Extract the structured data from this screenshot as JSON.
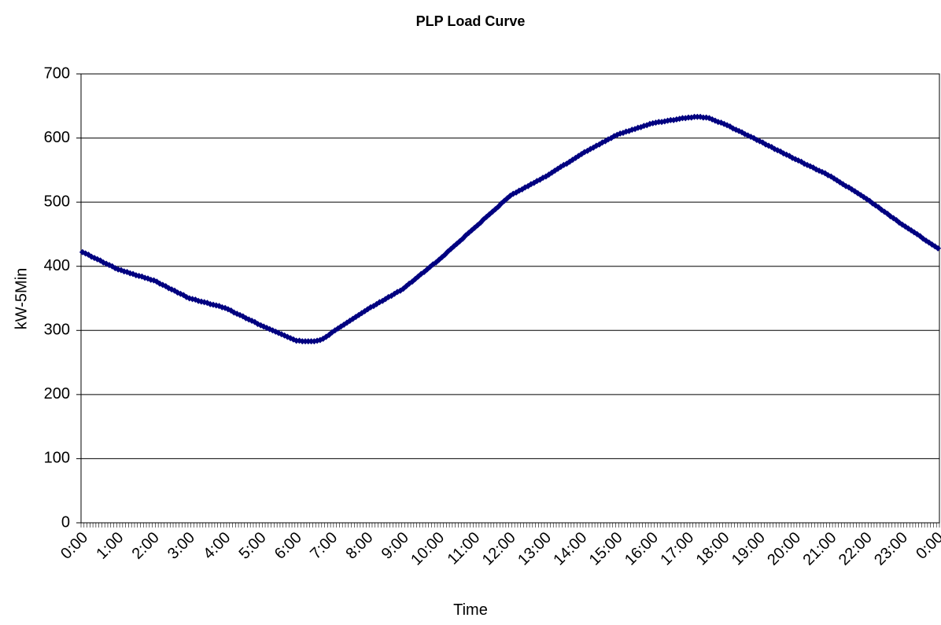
{
  "chart_data": {
    "type": "line",
    "title": "PLP Load Curve",
    "x_label": "Time",
    "y_label": "kW-5Min",
    "categories": [
      "0:00",
      null,
      null,
      null,
      null,
      null,
      null,
      null,
      null,
      null,
      null,
      null,
      "1:00",
      null,
      null,
      null,
      null,
      null,
      null,
      null,
      null,
      null,
      null,
      null,
      "2:00",
      null,
      null,
      null,
      null,
      null,
      null,
      null,
      null,
      null,
      null,
      null,
      "3:00",
      null,
      null,
      null,
      null,
      null,
      null,
      null,
      null,
      null,
      null,
      null,
      "4:00",
      null,
      null,
      null,
      null,
      null,
      null,
      null,
      null,
      null,
      null,
      null,
      "5:00",
      null,
      null,
      null,
      null,
      null,
      null,
      null,
      null,
      null,
      null,
      null,
      "6:00",
      null,
      null,
      null,
      null,
      null,
      null,
      null,
      null,
      null,
      null,
      null,
      "7:00",
      null,
      null,
      null,
      null,
      null,
      null,
      null,
      null,
      null,
      null,
      null,
      "8:00",
      null,
      null,
      null,
      null,
      null,
      null,
      null,
      null,
      null,
      null,
      null,
      "9:00",
      null,
      null,
      null,
      null,
      null,
      null,
      null,
      null,
      null,
      null,
      null,
      "10:00",
      null,
      null,
      null,
      null,
      null,
      null,
      null,
      null,
      null,
      null,
      null,
      "11:00",
      null,
      null,
      null,
      null,
      null,
      null,
      null,
      null,
      null,
      null,
      null,
      "12:00",
      null,
      null,
      null,
      null,
      null,
      null,
      null,
      null,
      null,
      null,
      null,
      "13:00",
      null,
      null,
      null,
      null,
      null,
      null,
      null,
      null,
      null,
      null,
      null,
      "14:00",
      null,
      null,
      null,
      null,
      null,
      null,
      null,
      null,
      null,
      null,
      null,
      "15:00",
      null,
      null,
      null,
      null,
      null,
      null,
      null,
      null,
      null,
      null,
      null,
      "16:00",
      null,
      null,
      null,
      null,
      null,
      null,
      null,
      null,
      null,
      null,
      null,
      "17:00",
      null,
      null,
      null,
      null,
      null,
      null,
      null,
      null,
      null,
      null,
      null,
      "18:00",
      null,
      null,
      null,
      null,
      null,
      null,
      null,
      null,
      null,
      null,
      null,
      "19:00",
      null,
      null,
      null,
      null,
      null,
      null,
      null,
      null,
      null,
      null,
      null,
      "20:00",
      null,
      null,
      null,
      null,
      null,
      null,
      null,
      null,
      null,
      null,
      null,
      "21:00",
      null,
      null,
      null,
      null,
      null,
      null,
      null,
      null,
      null,
      null,
      null,
      "22:00",
      null,
      null,
      null,
      null,
      null,
      null,
      null,
      null,
      null,
      null,
      null,
      "23:00",
      null,
      null,
      null,
      null,
      null,
      null,
      null,
      null,
      null,
      null,
      null,
      "0:00"
    ],
    "series": [
      {
        "color": "#000080",
        "values": [
          422,
          420,
          418,
          415,
          413,
          411,
          409,
          406,
          404,
          402,
          400,
          397,
          395,
          394,
          392,
          391,
          389,
          388,
          386,
          385,
          384,
          382,
          381,
          379,
          378,
          376,
          373,
          371,
          369,
          366,
          364,
          362,
          359,
          357,
          355,
          352,
          350,
          349,
          348,
          346,
          345,
          344,
          343,
          341,
          340,
          339,
          338,
          336,
          335,
          333,
          331,
          328,
          326,
          324,
          322,
          319,
          317,
          315,
          313,
          310,
          308,
          306,
          304,
          302,
          300,
          298,
          296,
          294,
          292,
          290,
          288,
          286,
          284,
          284,
          283,
          283,
          283,
          283,
          283,
          284,
          285,
          287,
          290,
          293,
          297,
          300,
          303,
          306,
          309,
          312,
          315,
          318,
          321,
          324,
          327,
          330,
          333,
          336,
          338,
          341,
          344,
          346,
          349,
          352,
          354,
          357,
          360,
          362,
          365,
          369,
          373,
          376,
          380,
          384,
          388,
          391,
          395,
          399,
          403,
          406,
          410,
          414,
          418,
          423,
          427,
          431,
          435,
          439,
          443,
          448,
          452,
          456,
          460,
          464,
          468,
          473,
          477,
          481,
          485,
          489,
          493,
          498,
          502,
          506,
          510,
          513,
          515,
          518,
          520,
          523,
          525,
          528,
          530,
          533,
          535,
          538,
          540,
          543,
          546,
          549,
          552,
          555,
          558,
          560,
          563,
          566,
          569,
          572,
          575,
          578,
          580,
          583,
          585,
          588,
          590,
          593,
          595,
          598,
          600,
          603,
          605,
          607,
          608,
          610,
          611,
          613,
          614,
          616,
          617,
          619,
          620,
          622,
          623,
          624,
          625,
          625,
          626,
          627,
          628,
          628,
          629,
          630,
          631,
          631,
          632,
          632,
          633,
          633,
          633,
          632,
          632,
          631,
          629,
          627,
          625,
          624,
          622,
          620,
          618,
          615,
          613,
          611,
          609,
          606,
          604,
          602,
          600,
          597,
          595,
          593,
          590,
          588,
          586,
          583,
          581,
          579,
          576,
          574,
          572,
          569,
          567,
          565,
          563,
          560,
          558,
          556,
          554,
          551,
          549,
          547,
          545,
          542,
          540,
          537,
          534,
          531,
          528,
          525,
          523,
          520,
          517,
          514,
          511,
          508,
          505,
          502,
          498,
          495,
          492,
          488,
          485,
          482,
          478,
          475,
          472,
          468,
          465,
          462,
          459,
          456,
          453,
          450,
          447,
          443,
          440,
          437,
          434,
          431,
          428
        ]
      }
    ],
    "ylim": [
      0,
      700
    ],
    "yticks": [
      0,
      100,
      200,
      300,
      400,
      500,
      600,
      700
    ],
    "grid": true
  }
}
